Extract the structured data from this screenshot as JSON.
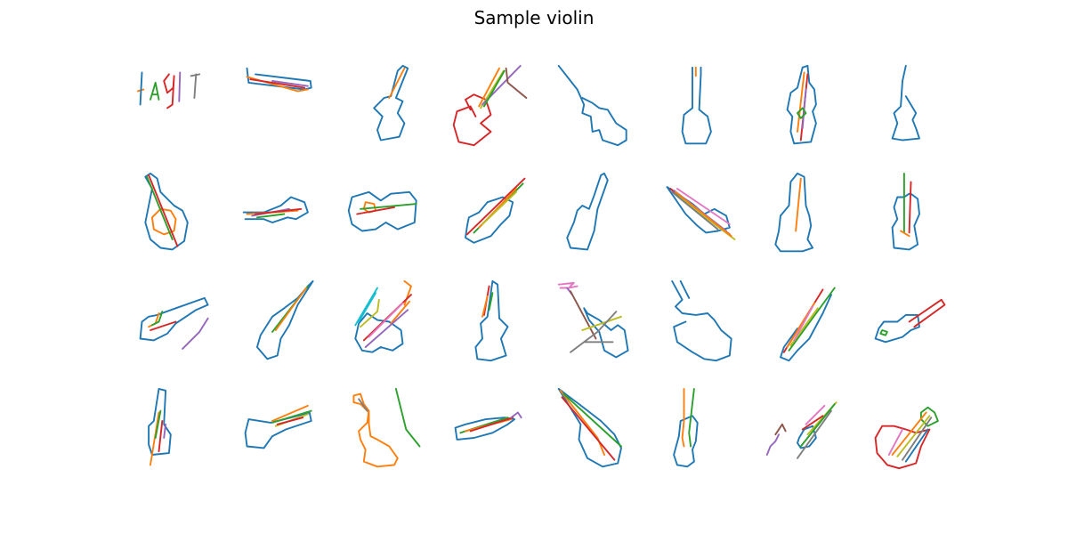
{
  "title": "Sample violin",
  "colors": {
    "blue": "#1f77b4",
    "orange": "#ff7f0e",
    "green": "#2ca02c",
    "red": "#d62728",
    "purple": "#9467bd",
    "brown": "#8c564b",
    "pink": "#e377c2",
    "gray": "#7f7f7f",
    "olive": "#bcbd22",
    "cyan": "#17becf"
  },
  "grid": {
    "rows": 4,
    "columns": 8
  }
}
